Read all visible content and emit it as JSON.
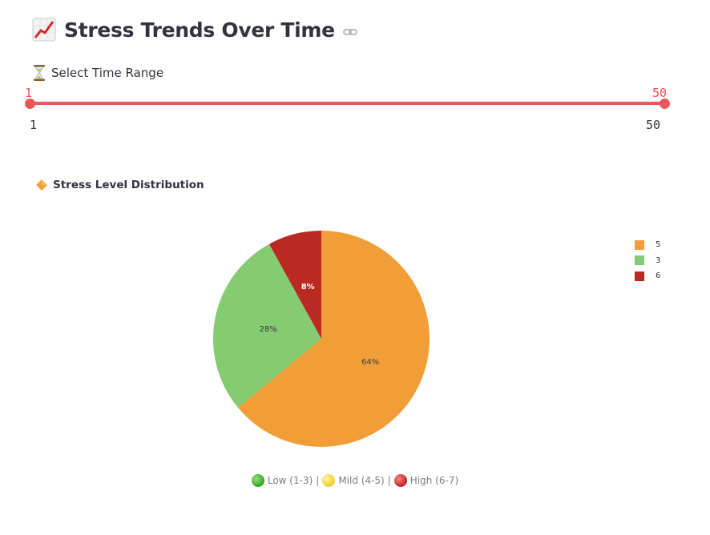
{
  "header": {
    "title": "Stress Trends Over Time",
    "title_icon": "chart-increasing-icon",
    "anchor_icon": "link-icon"
  },
  "range": {
    "label": "Select Time Range",
    "icon": "hourglass-icon",
    "low_value": "1",
    "high_value": "50",
    "min_label": "1",
    "max_label": "50",
    "accent_color": "#e8585a"
  },
  "distribution": {
    "title": "Stress Level Distribution",
    "icon": "orange-diamond-icon"
  },
  "chart_data": {
    "type": "pie",
    "categories": [
      "5",
      "3",
      "6"
    ],
    "values": [
      64,
      28,
      8
    ],
    "labels": [
      "64%",
      "28%",
      "8%"
    ],
    "colors": [
      "#f19e38",
      "#84cb72",
      "#bb2a22"
    ],
    "legend": [
      "5",
      "3",
      "6"
    ],
    "legend_placement": "top-right"
  },
  "caption": {
    "low": "Low (1-3)",
    "mild": "Mild (4-5)",
    "high": "High (6-7)",
    "separator": "|",
    "low_color": "#3fae2a",
    "mild_color": "#f6d33a",
    "high_color": "#c8322a"
  }
}
